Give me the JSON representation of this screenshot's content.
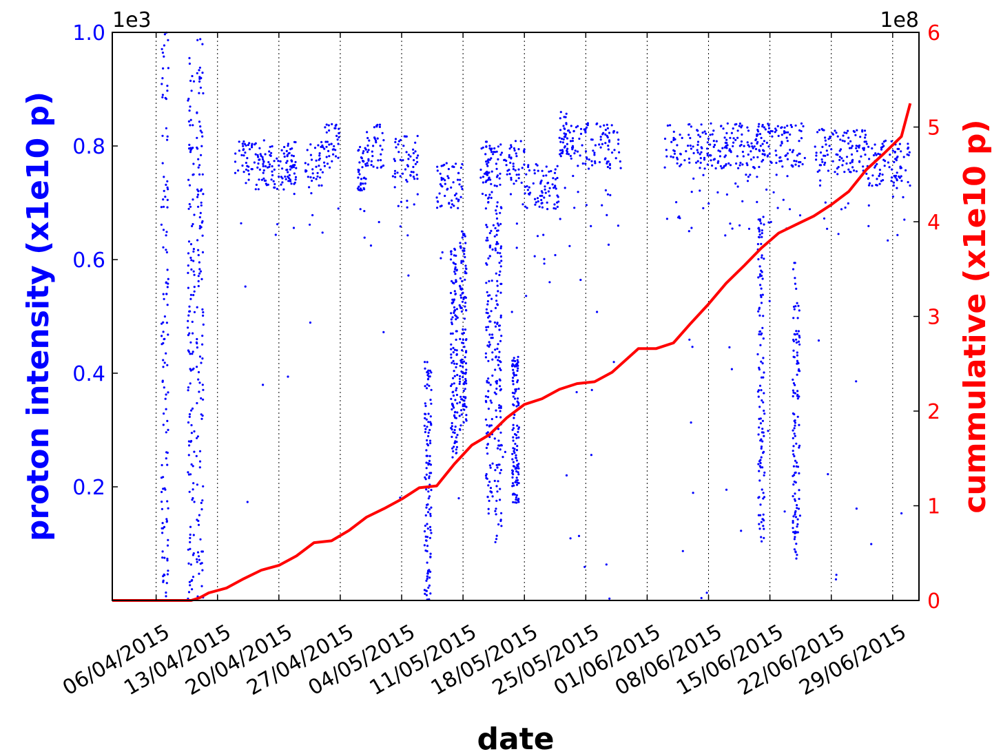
{
  "chart_data": {
    "type": "scatter",
    "x_axis": {
      "label": "date",
      "range": [
        "2015-04-01",
        "2015-07-02"
      ],
      "ticks": [
        "06/04/2015",
        "13/04/2015",
        "20/04/2015",
        "27/04/2015",
        "04/05/2015",
        "11/05/2015",
        "18/05/2015",
        "25/05/2015",
        "01/06/2015",
        "08/06/2015",
        "15/06/2015",
        "22/06/2015",
        "29/06/2015"
      ],
      "grid": "vertical dotted at date ticks"
    },
    "y_left": {
      "label": "proton intensity (x1e10 p)",
      "offset_text": "1e3",
      "range": [
        0,
        1.0
      ],
      "ticks": [
        "0.2",
        "0.4",
        "0.6",
        "0.8",
        "1.0"
      ],
      "color": "#0000ff"
    },
    "y_right": {
      "label": "cummulative (x1e10 p)",
      "offset_text": "1e8",
      "range": [
        0,
        6
      ],
      "ticks": [
        "0",
        "1",
        "2",
        "3",
        "4",
        "5",
        "6"
      ],
      "color": "#ff0000"
    },
    "series": [
      {
        "kind": "scatter",
        "axis": "left",
        "color": "#0000ff",
        "note": "dense per-fill intensity samples; main bands listed as [start, end, level]",
        "bands": [
          [
            "2015-04-15",
            "2015-04-19",
            0.77
          ],
          [
            "2015-04-19",
            "2015-04-21",
            0.76
          ],
          [
            "2015-04-21",
            "2015-04-22",
            0.77
          ],
          [
            "2015-04-23",
            "2015-04-25",
            0.77
          ],
          [
            "2015-04-25",
            "2015-04-27",
            0.8
          ],
          [
            "2015-04-29",
            "2015-04-30",
            0.76
          ],
          [
            "2015-04-30",
            "2015-05-02",
            0.8
          ],
          [
            "2015-05-03",
            "2015-05-06",
            0.78
          ],
          [
            "2015-05-08",
            "2015-05-11",
            0.73
          ],
          [
            "2015-05-13",
            "2015-05-18",
            0.77
          ],
          [
            "2015-05-18",
            "2015-05-22",
            0.73
          ],
          [
            "2015-05-22",
            "2015-05-23",
            0.82
          ],
          [
            "2015-05-23",
            "2015-05-29",
            0.8
          ],
          [
            "2015-06-03",
            "2015-06-14",
            0.8
          ],
          [
            "2015-06-14",
            "2015-06-19",
            0.8
          ],
          [
            "2015-06-20",
            "2015-06-26",
            0.79
          ],
          [
            "2015-06-26",
            "2015-07-01",
            0.77
          ]
        ],
        "spikes": [
          [
            "2015-04-07",
            0.0,
            1.0
          ],
          [
            "2015-04-10",
            0.0,
            0.97
          ],
          [
            "2015-04-11",
            0.0,
            0.99
          ],
          [
            "2015-05-07",
            0.0,
            0.42
          ],
          [
            "2015-05-10",
            0.25,
            0.62
          ],
          [
            "2015-05-11",
            0.3,
            0.65
          ],
          [
            "2015-05-14",
            0.15,
            0.8
          ],
          [
            "2015-05-15",
            0.1,
            0.7
          ],
          [
            "2015-05-17",
            0.17,
            0.43
          ],
          [
            "2015-06-14",
            0.1,
            0.68
          ],
          [
            "2015-06-18",
            0.07,
            0.6
          ]
        ]
      },
      {
        "kind": "line",
        "axis": "right",
        "color": "#ff0000",
        "name": "cumulative",
        "x": [
          "2015-04-01",
          "2015-04-10",
          "2015-04-11",
          "2015-04-12",
          "2015-04-14",
          "2015-04-16",
          "2015-04-18",
          "2015-04-20",
          "2015-04-22",
          "2015-04-24",
          "2015-04-26",
          "2015-04-28",
          "2015-04-30",
          "2015-05-02",
          "2015-05-04",
          "2015-05-06",
          "2015-05-08",
          "2015-05-10",
          "2015-05-12",
          "2015-05-14",
          "2015-05-16",
          "2015-05-18",
          "2015-05-20",
          "2015-05-22",
          "2015-05-24",
          "2015-05-26",
          "2015-05-28",
          "2015-05-31",
          "2015-06-02",
          "2015-06-04",
          "2015-06-06",
          "2015-06-08",
          "2015-06-10",
          "2015-06-12",
          "2015-06-14",
          "2015-06-16",
          "2015-06-18",
          "2015-06-20",
          "2015-06-22",
          "2015-06-24",
          "2015-06-26",
          "2015-06-28",
          "2015-06-30",
          "2015-07-01"
        ],
        "y": [
          0.0,
          0.0,
          0.03,
          0.08,
          0.13,
          0.23,
          0.32,
          0.37,
          0.47,
          0.61,
          0.63,
          0.74,
          0.88,
          0.97,
          1.07,
          1.19,
          1.21,
          1.44,
          1.64,
          1.75,
          1.93,
          2.07,
          2.13,
          2.23,
          2.29,
          2.31,
          2.41,
          2.66,
          2.66,
          2.72,
          2.93,
          3.13,
          3.35,
          3.53,
          3.72,
          3.88,
          3.97,
          4.06,
          4.18,
          4.32,
          4.55,
          4.72,
          4.9,
          5.25
        ]
      }
    ]
  }
}
